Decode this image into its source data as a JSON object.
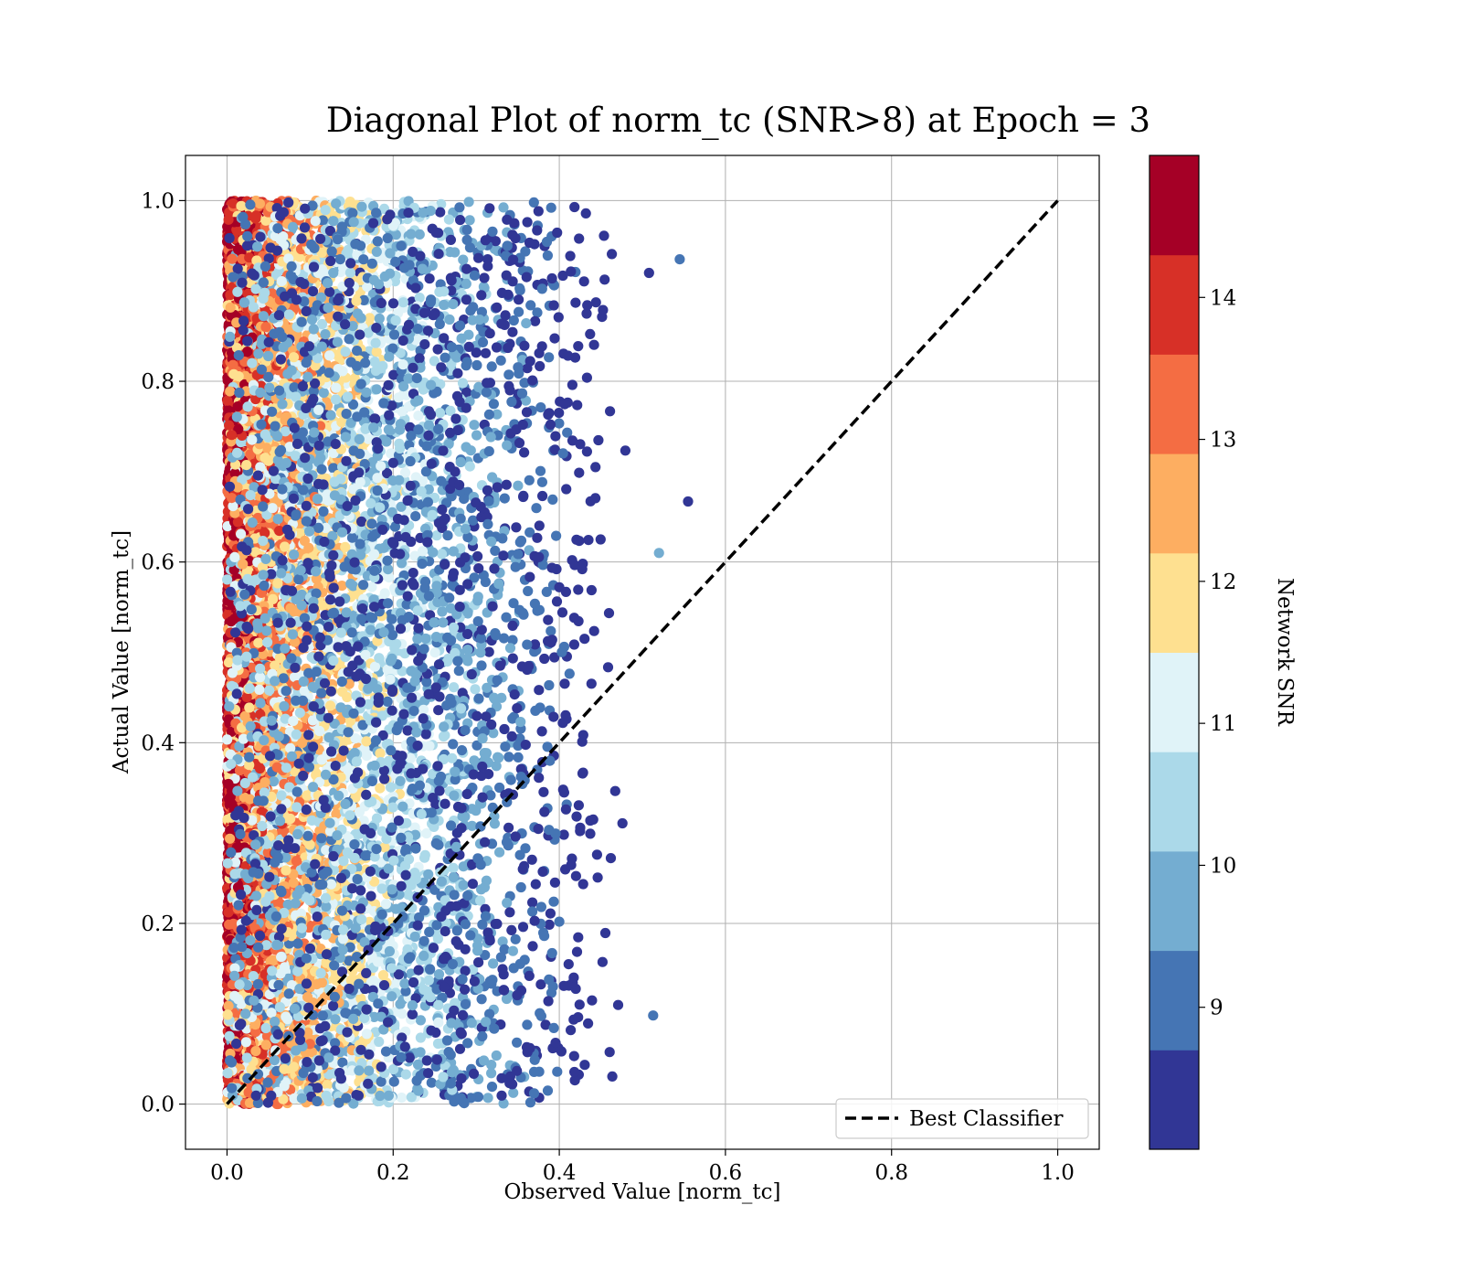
{
  "chart_data": {
    "type": "scatter",
    "title": "Diagonal Plot of norm_tc (SNR>8) at Epoch = 3",
    "xlabel": "Observed Value [norm_tc]",
    "ylabel": "Actual Value [norm_tc]",
    "xlim": [
      -0.05,
      1.05
    ],
    "ylim": [
      -0.05,
      1.05
    ],
    "xticks": [
      "0.0",
      "0.2",
      "0.4",
      "0.6",
      "0.8",
      "1.0"
    ],
    "yticks": [
      "0.0",
      "0.2",
      "0.4",
      "0.6",
      "0.8",
      "1.0"
    ],
    "grid": true,
    "legend": {
      "position": "lower-right",
      "entries": [
        "Best Classifier"
      ]
    },
    "reference_line": {
      "name": "Best Classifier",
      "style": "dashed",
      "color": "#000000",
      "x": [
        0,
        1
      ],
      "y": [
        0,
        1
      ]
    },
    "colorbar": {
      "label": "Network SNR",
      "range": [
        8,
        15
      ],
      "ticks": [
        "9",
        "10",
        "11",
        "12",
        "13",
        "14"
      ],
      "colors": [
        "#313695",
        "#4575b4",
        "#74add1",
        "#abd9e9",
        "#e0f3f8",
        "#fee090",
        "#fdae61",
        "#f46d43",
        "#d73027",
        "#a50026"
      ]
    },
    "scatter_description": {
      "x_range_by_snr": "observed values cluster near 0 for high SNR (~14-15) and spread up to ~0.5 for low SNR (~8-9)",
      "outliers": [
        [
          0.545,
          0.935
        ],
        [
          0.508,
          0.92
        ],
        [
          0.555,
          0.667
        ],
        [
          0.52,
          0.61
        ],
        [
          0.513,
          0.098
        ]
      ]
    }
  }
}
